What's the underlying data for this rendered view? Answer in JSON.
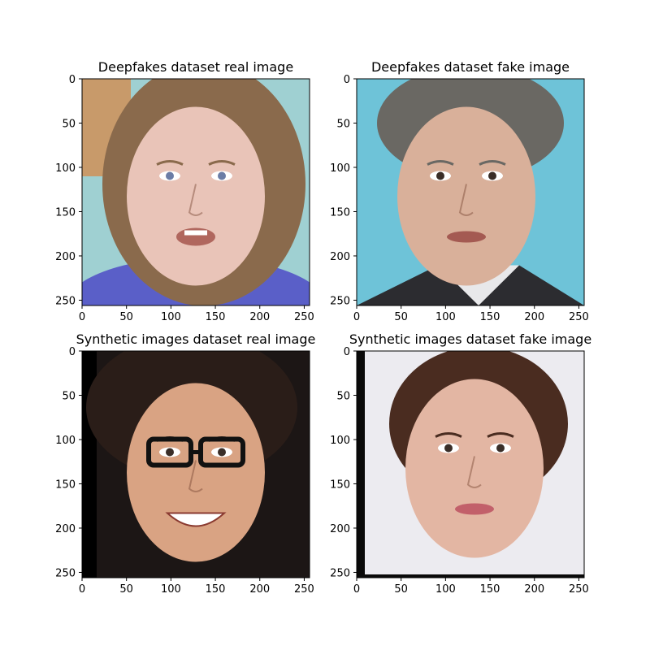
{
  "chart_data": [
    {
      "type": "image",
      "title": "Deepfakes dataset real image",
      "xlim": [
        0,
        256
      ],
      "ylim": [
        256,
        0
      ],
      "xticks": [
        0,
        50,
        100,
        150,
        200,
        250
      ],
      "yticks": [
        0,
        50,
        100,
        150,
        200,
        250
      ],
      "image_description": "Young woman with long light-brown hair, blue eyes, mouth slightly open; teal background on left",
      "palette": {
        "bg": "#9fd0d2",
        "skin": "#e9c4b8",
        "hair": "#8a6a4c",
        "accent": "#5a5fc8",
        "dark": "#3a2a1e"
      }
    },
    {
      "type": "image",
      "title": "Deepfakes dataset fake image",
      "xlim": [
        0,
        256
      ],
      "ylim": [
        256,
        0
      ],
      "xticks": [
        0,
        50,
        100,
        150,
        200,
        250
      ],
      "yticks": [
        0,
        50,
        100,
        150,
        200,
        250
      ],
      "image_description": "Middle-aged man with grey hair, dark suit and white shirt; light blue background",
      "palette": {
        "bg": "#6ec3d8",
        "skin": "#d9b09a",
        "hair": "#6a6863",
        "accent": "#e8e8ea",
        "dark": "#2c2c30"
      }
    },
    {
      "type": "image",
      "title": "Synthetic images dataset real image",
      "xlim": [
        0,
        256
      ],
      "ylim": [
        256,
        0
      ],
      "xticks": [
        0,
        50,
        100,
        150,
        200,
        250
      ],
      "yticks": [
        0,
        50,
        100,
        150,
        200,
        250
      ],
      "image_description": "Smiling young man with dark hair and black-rimmed glasses; dark background",
      "palette": {
        "bg": "#1c1615",
        "skin": "#d9a383",
        "hair": "#2a1d18",
        "accent": "#111111",
        "dark": "#0a0808"
      }
    },
    {
      "type": "image",
      "title": "Synthetic images dataset fake image",
      "xlim": [
        0,
        256
      ],
      "ylim": [
        256,
        0
      ],
      "xticks": [
        0,
        50,
        100,
        150,
        200,
        250
      ],
      "yticks": [
        0,
        50,
        100,
        150,
        200,
        250
      ],
      "image_description": "Woman with dark hair pulled back, pale skin, light background",
      "palette": {
        "bg": "#ecebf0",
        "skin": "#e3b6a3",
        "hair": "#4a2c20",
        "accent": "#c2606a",
        "dark": "#0a0a0a"
      }
    }
  ]
}
